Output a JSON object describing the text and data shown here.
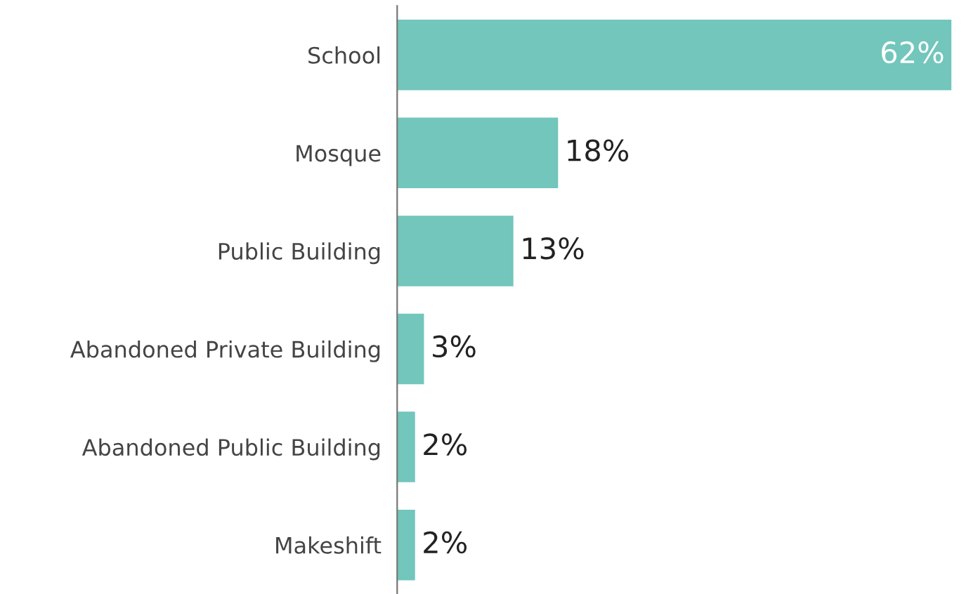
{
  "chart_data": {
    "type": "bar",
    "orientation": "horizontal",
    "categories": [
      "School",
      "Mosque",
      "Public Building",
      "Abandoned Private Building",
      "Abandoned Public Building",
      "Makeshift"
    ],
    "values": [
      62,
      18,
      13,
      3,
      2,
      2
    ],
    "color": "#72c6bb",
    "value_labels": [
      "62%",
      "18%",
      "13%",
      "3%",
      "2%",
      "2%"
    ],
    "grid": false,
    "legend": false
  }
}
